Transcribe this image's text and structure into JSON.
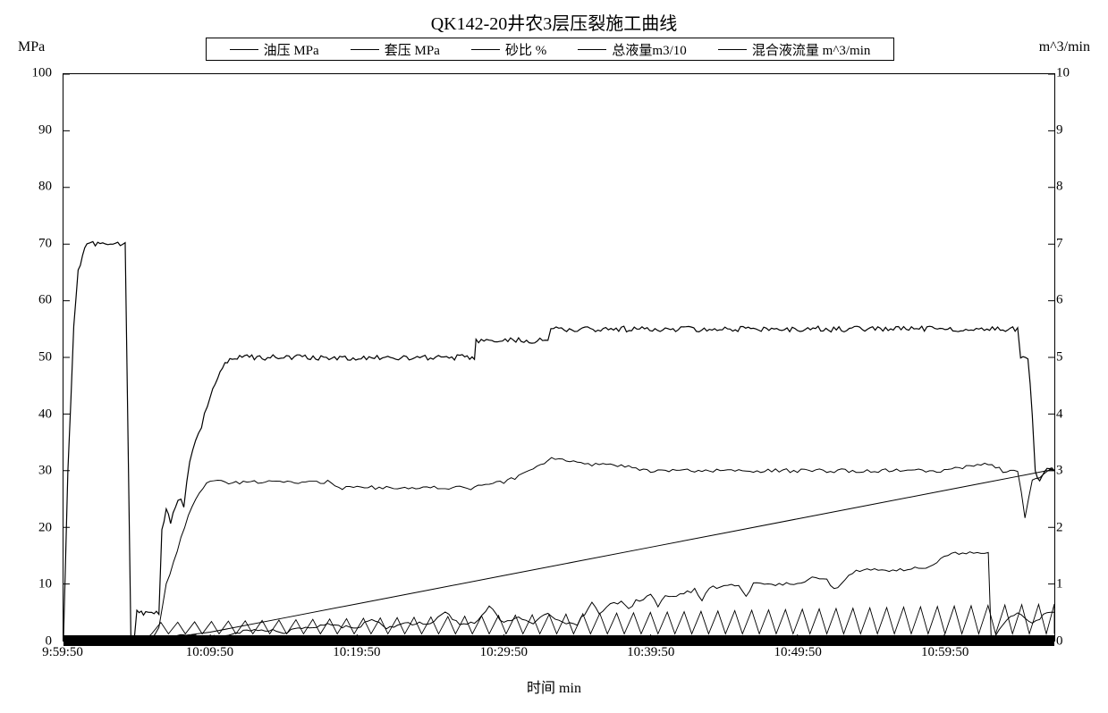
{
  "title": "QK142-20井农3层压裂施工曲线",
  "axes": {
    "y_left": {
      "label": "MPa",
      "lim": [
        0,
        100
      ],
      "ticks": [
        0,
        10,
        20,
        30,
        40,
        50,
        60,
        70,
        80,
        90,
        100
      ],
      "fontsize": 15
    },
    "y_right": {
      "label": "m^3/min",
      "lim": [
        0,
        10
      ],
      "ticks": [
        0,
        1,
        2,
        3,
        4,
        5,
        6,
        7,
        8,
        9,
        10
      ],
      "fontsize": 15
    },
    "x": {
      "label": "时间   min",
      "lim_min": 0,
      "lim_max": 67.5,
      "ticks_min": [
        0,
        10,
        20,
        30,
        40,
        50,
        60
      ],
      "tick_labels": [
        "9:59:50",
        "10:09:50",
        "10:19:50",
        "10:29:50",
        "10:39:50",
        "10:49:50",
        "10:59:50"
      ],
      "fontsize": 15
    }
  },
  "style": {
    "background_color": "#ffffff",
    "grid": false,
    "grid_color": "#e0e0e0",
    "line_color": "#000000",
    "legend_border": "#000000",
    "title_fontsize": 20,
    "label_fontsize": 16,
    "baseline_band_thickness": 12
  },
  "legend": [
    {
      "label": "油压 MPa",
      "axis": "left",
      "color": "#000000"
    },
    {
      "label": "套压 MPa",
      "axis": "left",
      "color": "#000000"
    },
    {
      "label": "砂比 %",
      "axis": "left",
      "color": "#000000"
    },
    {
      "label": "总液量m3/10",
      "axis": "left",
      "color": "#000000"
    },
    {
      "label": "混合液流量 m^3/min",
      "axis": "right",
      "color": "#000000"
    }
  ],
  "series": {
    "oil_pressure": {
      "axis": "left",
      "color": "#000000",
      "width": 1.2,
      "points": [
        [
          0,
          0
        ],
        [
          0.3,
          30
        ],
        [
          0.5,
          42
        ],
        [
          0.7,
          55
        ],
        [
          1.0,
          65
        ],
        [
          1.3,
          68
        ],
        [
          1.6,
          70
        ],
        [
          2.0,
          70
        ],
        [
          2.5,
          70
        ],
        [
          3.2,
          70
        ],
        [
          4.2,
          70
        ],
        [
          4.6,
          0
        ],
        [
          4.8,
          0
        ],
        [
          5.0,
          5
        ],
        [
          5.3,
          5
        ],
        [
          5.6,
          5
        ],
        [
          6.0,
          5
        ],
        [
          6.5,
          5
        ],
        [
          6.7,
          20
        ],
        [
          7.0,
          23
        ],
        [
          7.3,
          21
        ],
        [
          7.8,
          25
        ],
        [
          8.2,
          24
        ],
        [
          8.6,
          32
        ],
        [
          9.0,
          35
        ],
        [
          9.4,
          38
        ],
        [
          10.0,
          43
        ],
        [
          10.5,
          46
        ],
        [
          11.0,
          49
        ],
        [
          11.5,
          50
        ],
        [
          12,
          50
        ],
        [
          13,
          50
        ],
        [
          15,
          50
        ],
        [
          17,
          50
        ],
        [
          19,
          50
        ],
        [
          21,
          50
        ],
        [
          23,
          50
        ],
        [
          25,
          50
        ],
        [
          27,
          50
        ],
        [
          28,
          50
        ],
        [
          28.1,
          53
        ],
        [
          29,
          53
        ],
        [
          31,
          53
        ],
        [
          33,
          53
        ],
        [
          33.2,
          55
        ],
        [
          35,
          55
        ],
        [
          38,
          55
        ],
        [
          41,
          55
        ],
        [
          44,
          55
        ],
        [
          47,
          55
        ],
        [
          50,
          55
        ],
        [
          53,
          55
        ],
        [
          56,
          55
        ],
        [
          59,
          55
        ],
        [
          62,
          55
        ],
        [
          64,
          55
        ],
        [
          65,
          55
        ],
        [
          65.2,
          50
        ],
        [
          65.7,
          50
        ],
        [
          66,
          40
        ],
        [
          66.2,
          30
        ],
        [
          66.5,
          28
        ],
        [
          67,
          30
        ],
        [
          67.5,
          30
        ]
      ]
    },
    "casing_pressure": {
      "axis": "left",
      "color": "#000000",
      "width": 1.0,
      "points": [
        [
          0,
          0
        ],
        [
          5,
          0
        ],
        [
          6,
          0
        ],
        [
          6.5,
          2
        ],
        [
          7.0,
          10
        ],
        [
          7.5,
          14
        ],
        [
          8,
          18
        ],
        [
          8.5,
          22
        ],
        [
          9,
          25
        ],
        [
          9.5,
          27
        ],
        [
          10,
          28
        ],
        [
          11,
          28
        ],
        [
          12,
          28
        ],
        [
          14,
          28
        ],
        [
          16,
          28
        ],
        [
          18,
          28
        ],
        [
          19,
          27
        ],
        [
          20,
          27
        ],
        [
          22,
          27
        ],
        [
          24,
          27
        ],
        [
          26,
          27
        ],
        [
          28,
          27
        ],
        [
          30,
          28
        ],
        [
          32,
          30
        ],
        [
          33,
          32
        ],
        [
          34,
          32
        ],
        [
          36,
          31
        ],
        [
          38,
          31
        ],
        [
          40,
          30
        ],
        [
          42,
          30
        ],
        [
          44,
          30
        ],
        [
          46,
          30
        ],
        [
          48,
          30
        ],
        [
          50,
          30
        ],
        [
          52,
          30
        ],
        [
          54,
          30
        ],
        [
          56,
          30
        ],
        [
          58,
          30
        ],
        [
          60,
          30
        ],
        [
          62,
          31
        ],
        [
          63,
          31
        ],
        [
          64,
          30
        ],
        [
          65,
          30
        ],
        [
          65.5,
          22
        ],
        [
          66,
          28
        ],
        [
          67,
          30
        ],
        [
          67.5,
          30
        ]
      ]
    },
    "total_volume_div10": {
      "axis": "left",
      "color": "#000000",
      "width": 1.0,
      "points": [
        [
          0,
          0
        ],
        [
          3,
          0
        ],
        [
          5,
          0
        ],
        [
          6,
          0
        ],
        [
          7,
          0.5
        ],
        [
          10,
          1.5
        ],
        [
          15,
          4
        ],
        [
          20,
          6.5
        ],
        [
          25,
          9
        ],
        [
          30,
          11.5
        ],
        [
          35,
          14
        ],
        [
          40,
          16.5
        ],
        [
          45,
          19
        ],
        [
          50,
          21.5
        ],
        [
          55,
          24
        ],
        [
          60,
          26.5
        ],
        [
          63,
          28
        ],
        [
          65,
          29
        ],
        [
          67,
          30
        ],
        [
          67.5,
          30
        ]
      ]
    },
    "sand_ratio_pct": {
      "axis": "left",
      "color": "#000000",
      "width": 1.0,
      "points": [
        [
          0,
          0
        ],
        [
          5,
          0
        ],
        [
          7,
          0
        ],
        [
          8,
          1
        ],
        [
          10,
          0.5
        ],
        [
          13,
          2
        ],
        [
          15,
          1.5
        ],
        [
          18,
          3
        ],
        [
          20,
          2
        ],
        [
          21,
          4
        ],
        [
          22,
          2
        ],
        [
          23,
          3
        ],
        [
          25,
          3
        ],
        [
          26,
          5
        ],
        [
          27,
          3
        ],
        [
          28,
          3
        ],
        [
          29,
          6
        ],
        [
          30,
          3
        ],
        [
          31,
          4
        ],
        [
          32,
          3
        ],
        [
          33,
          5
        ],
        [
          34,
          3
        ],
        [
          35,
          3
        ],
        [
          36,
          6.5
        ],
        [
          36.5,
          5
        ],
        [
          37,
          6
        ],
        [
          38,
          7
        ],
        [
          38.5,
          5.5
        ],
        [
          39,
          7
        ],
        [
          40,
          8
        ],
        [
          40.5,
          6
        ],
        [
          41,
          8
        ],
        [
          42,
          8
        ],
        [
          43,
          9
        ],
        [
          43.5,
          7
        ],
        [
          44,
          9.5
        ],
        [
          45,
          9.5
        ],
        [
          46,
          10
        ],
        [
          46.5,
          8
        ],
        [
          47,
          10
        ],
        [
          48,
          10
        ],
        [
          49,
          10
        ],
        [
          50,
          10
        ],
        [
          51,
          11
        ],
        [
          52,
          11
        ],
        [
          52.5,
          9
        ],
        [
          53,
          10
        ],
        [
          54,
          12.5
        ],
        [
          55,
          12.5
        ],
        [
          56,
          12.5
        ],
        [
          57,
          12.5
        ],
        [
          58,
          13
        ],
        [
          59,
          13
        ],
        [
          60,
          15
        ],
        [
          61,
          15.5
        ],
        [
          62,
          15.5
        ],
        [
          63,
          15.5
        ],
        [
          63.2,
          0
        ],
        [
          64,
          3
        ],
        [
          65,
          5
        ],
        [
          66,
          3
        ],
        [
          67,
          5
        ],
        [
          67.5,
          5
        ]
      ]
    },
    "mix_flow_sawtooth": {
      "axis": "left",
      "color": "#000000",
      "width": 0.9,
      "base": {
        "from_x": 6,
        "to_x": 67.5,
        "low": 1.2,
        "high_start": 3.2,
        "high_end": 6.5,
        "period": 1.15
      }
    }
  }
}
